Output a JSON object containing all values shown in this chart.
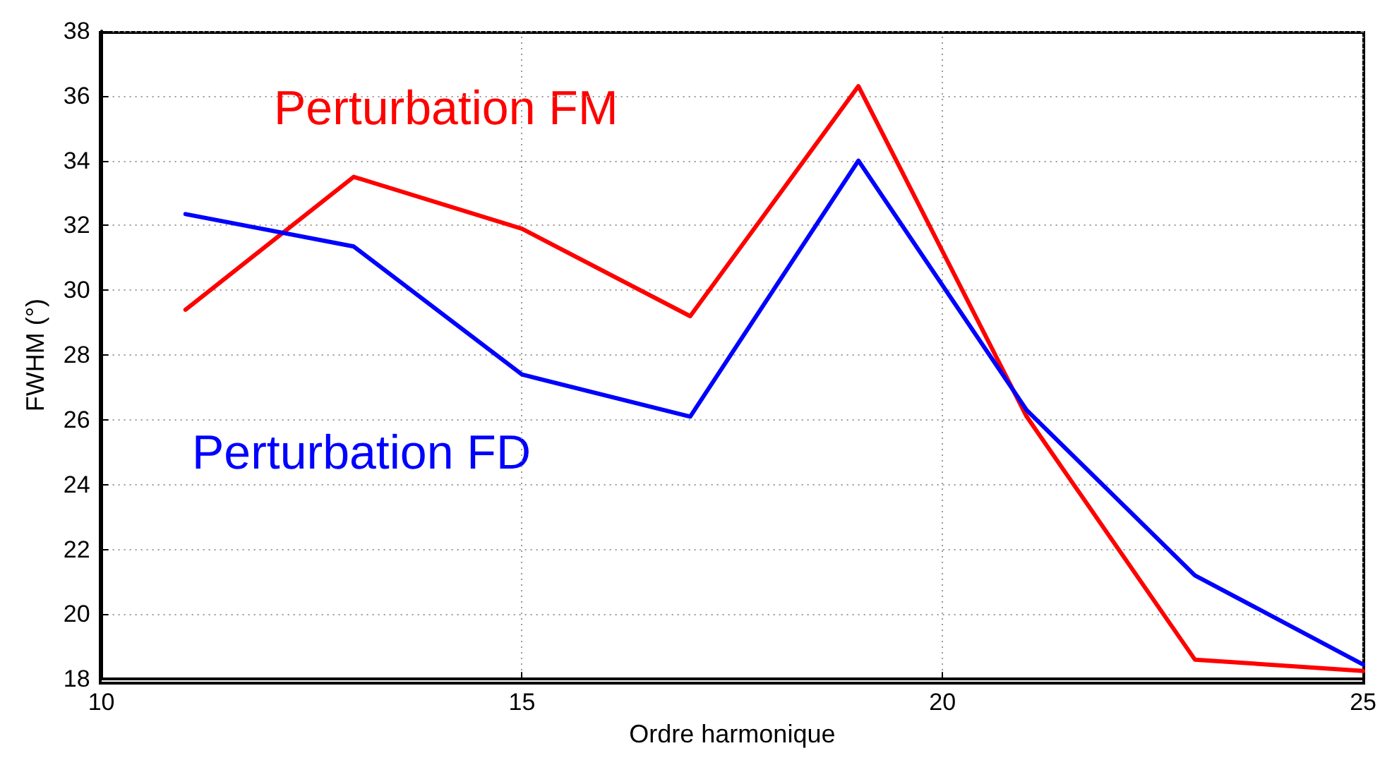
{
  "chart_data": {
    "type": "line",
    "xlabel": "Ordre harmonique",
    "ylabel": "FWHM (°)",
    "x": [
      11,
      13,
      15,
      17,
      19,
      21,
      23,
      25
    ],
    "series": [
      {
        "name": "Perturbation FM",
        "color": "#ff0000",
        "values": [
          29.4,
          33.5,
          31.9,
          29.2,
          36.3,
          26.1,
          18.6,
          18.25
        ]
      },
      {
        "name": "Perturbation FD",
        "color": "#0000ff",
        "values": [
          32.35,
          31.35,
          27.4,
          26.1,
          34.0,
          26.3,
          21.2,
          18.45
        ]
      }
    ],
    "xlim": [
      10,
      25
    ],
    "xticks": [
      10,
      15,
      20,
      25
    ],
    "ylim": [
      18,
      38
    ],
    "yticks": [
      18,
      20,
      22,
      24,
      26,
      28,
      30,
      32,
      34,
      36,
      38
    ],
    "grid": true,
    "legend": false,
    "marker": "none",
    "line_style": "solid"
  }
}
